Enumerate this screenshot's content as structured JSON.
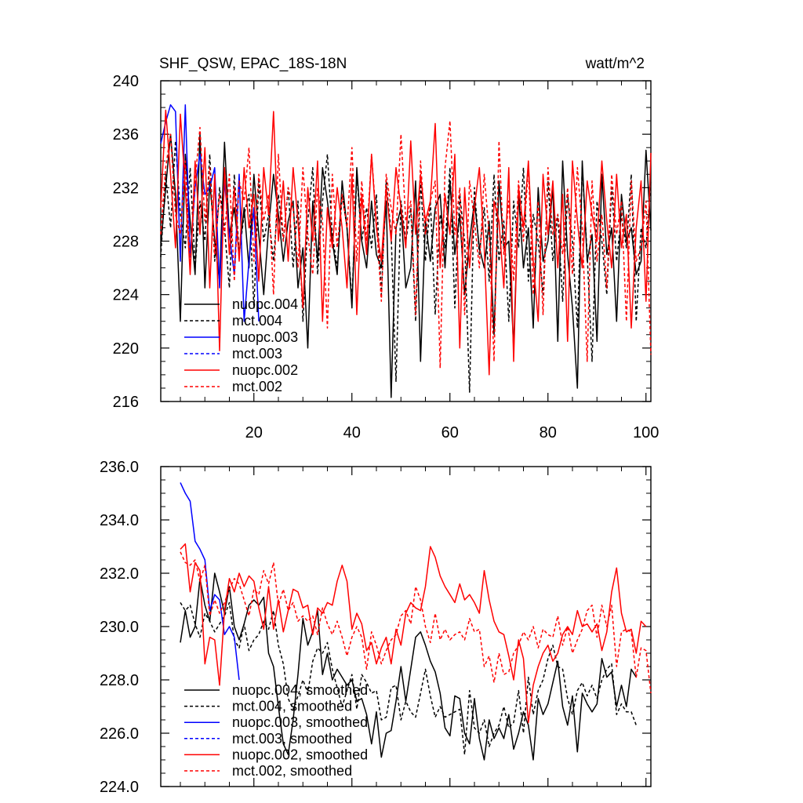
{
  "figure": {
    "title_left": "SHF_QSW, EPAC_18S-18N",
    "title_right": "watt/m^2"
  },
  "colors": {
    "black": "#000000",
    "blue": "#0000ff",
    "red": "#ff0000"
  },
  "chart_data": [
    {
      "type": "line",
      "title": "SHF_QSW, EPAC_18S-18N",
      "units": "watt/m^2",
      "xlim": [
        1,
        101
      ],
      "ylim": [
        216,
        240
      ],
      "xticks": [
        20,
        40,
        60,
        80,
        100
      ],
      "xtick_labels": [
        "20",
        "40",
        "60",
        "80",
        "100"
      ],
      "yticks": [
        216,
        220,
        224,
        228,
        232,
        236,
        240
      ],
      "ytick_labels": [
        "216",
        "220",
        "224",
        "228",
        "232",
        "236",
        "240"
      ],
      "legend": {
        "placement": "bottom-left"
      },
      "series": [
        {
          "name": "nuopc.004",
          "color": "#000000",
          "dash": "solid",
          "x_start": 1,
          "values": [
            227.6,
            232.0,
            236.0,
            231.5,
            222.0,
            234.5,
            229.5,
            225.5,
            236.0,
            224.5,
            232.5,
            228.0,
            225.0,
            235.4,
            228.5,
            230.5,
            227.0,
            230.5,
            226.0,
            233.0,
            228.5,
            224.0,
            229.0,
            233.0,
            230.0,
            226.5,
            229.5,
            231.0,
            224.5,
            227.5,
            220.0,
            231.0,
            226.5,
            233.5,
            231.0,
            228.0,
            225.5,
            232.5,
            229.0,
            223.0,
            233.5,
            228.0,
            226.0,
            231.0,
            227.0,
            226.0,
            231.0,
            216.3,
            229.0,
            230.5,
            224.5,
            226.0,
            232.5,
            219.0,
            229.5,
            226.5,
            230.5,
            231.5,
            226.0,
            232.5,
            227.0,
            230.0,
            224.0,
            228.0,
            231.0,
            227.5,
            226.0,
            229.5,
            221.0,
            232.5,
            227.5,
            228.0,
            220.0,
            231.5,
            226.0,
            229.0,
            221.5,
            232.0,
            226.5,
            228.0,
            232.0,
            220.5,
            234.0,
            227.0,
            223.0,
            217.0,
            234.0,
            226.5,
            228.5,
            220.5,
            233.0,
            227.0,
            229.0,
            222.0,
            231.5,
            228.0,
            229.0,
            225.5,
            226.5,
            234.8,
            228.8
          ]
        },
        {
          "name": "mct.004",
          "color": "#000000",
          "dash": "dashed",
          "x_start": 1,
          "values": [
            226.8,
            233.0,
            229.0,
            235.5,
            230.0,
            227.5,
            233.5,
            226.0,
            231.0,
            228.0,
            234.5,
            226.5,
            232.0,
            229.0,
            224.5,
            233.0,
            227.0,
            230.0,
            231.5,
            223.0,
            232.5,
            228.0,
            230.0,
            226.5,
            231.5,
            228.0,
            232.0,
            226.0,
            231.0,
            222.0,
            229.5,
            233.5,
            225.5,
            231.0,
            234.5,
            228.5,
            226.0,
            231.5,
            229.0,
            223.5,
            233.0,
            228.0,
            230.5,
            227.5,
            231.5,
            224.0,
            232.5,
            228.5,
            217.5,
            231.0,
            228.0,
            230.5,
            222.0,
            232.5,
            226.5,
            231.0,
            222.5,
            230.0,
            227.5,
            233.5,
            223.0,
            231.5,
            228.0,
            216.7,
            232.0,
            227.0,
            230.5,
            225.0,
            233.0,
            226.5,
            229.5,
            222.0,
            231.0,
            227.5,
            233.5,
            225.0,
            230.0,
            228.0,
            224.0,
            232.5,
            226.5,
            230.0,
            223.5,
            231.5,
            228.0,
            221.5,
            233.5,
            227.0,
            219.0,
            231.0,
            228.0,
            224.0,
            232.0,
            226.5,
            230.0,
            227.5,
            233.0,
            222.0,
            229.0,
            227.5,
            232.5
          ]
        },
        {
          "name": "nuopc.003",
          "color": "#0000ff",
          "dash": "solid",
          "x_start": 1,
          "values": [
            235.3,
            236.9,
            238.2,
            237.7,
            226.5,
            238.2,
            226.8,
            232.0,
            234.5,
            231.5,
            232.0,
            233.5,
            224.5,
            232.5,
            228.5,
            225.5,
            233.0,
            222.0,
            226.5,
            230.5,
            222.0
          ]
        },
        {
          "name": "mct.003",
          "color": "#0000ff",
          "dash": "dashed",
          "x_start": 1,
          "values": []
        },
        {
          "name": "nuopc.002",
          "color": "#ff0000",
          "dash": "solid",
          "x_start": 1,
          "values": [
            230.5,
            237.8,
            233.0,
            227.5,
            237.5,
            232.0,
            225.5,
            234.0,
            228.5,
            235.0,
            224.5,
            233.0,
            219.8,
            233.5,
            227.0,
            232.0,
            226.5,
            233.5,
            229.0,
            231.5,
            225.0,
            233.5,
            230.0,
            237.7,
            228.0,
            232.5,
            226.5,
            233.5,
            229.5,
            223.0,
            232.0,
            228.0,
            234.0,
            222.0,
            230.5,
            227.5,
            232.0,
            229.0,
            224.5,
            233.0,
            222.5,
            231.5,
            227.0,
            234.5,
            229.0,
            226.5,
            232.0,
            228.0,
            233.5,
            230.5,
            227.5,
            235.5,
            228.5,
            233.0,
            229.5,
            231.0,
            236.8,
            226.0,
            231.5,
            228.5,
            234.5,
            220.0,
            232.0,
            226.0,
            230.5,
            233.5,
            227.5,
            218.0,
            231.0,
            229.5,
            224.5,
            233.5,
            219.0,
            232.0,
            229.0,
            234.0,
            226.5,
            222.0,
            233.0,
            228.5,
            232.5,
            226.0,
            231.5,
            220.5,
            234.0,
            229.5,
            226.0,
            232.5,
            230.0,
            228.0,
            234.0,
            229.5,
            226.0,
            233.0,
            227.5,
            230.0,
            221.5,
            229.0,
            232.5,
            223.5,
            234.6
          ]
        },
        {
          "name": "mct.002",
          "color": "#ff0000",
          "dash": "dashed",
          "x_start": 1,
          "values": [
            228.5,
            233.5,
            236.0,
            230.0,
            228.5,
            234.0,
            226.0,
            232.5,
            236.5,
            229.5,
            233.5,
            227.0,
            231.5,
            228.5,
            233.0,
            225.0,
            232.5,
            231.0,
            235.0,
            226.5,
            233.0,
            229.5,
            231.5,
            224.0,
            234.5,
            228.0,
            232.0,
            230.5,
            226.0,
            233.5,
            228.5,
            225.5,
            232.0,
            229.5,
            221.5,
            233.0,
            227.5,
            231.5,
            229.0,
            235.0,
            226.5,
            232.5,
            228.0,
            234.5,
            229.5,
            223.5,
            233.0,
            230.5,
            228.5,
            236.0,
            229.5,
            231.0,
            222.5,
            234.0,
            228.5,
            231.0,
            232.5,
            218.5,
            233.5,
            237.0,
            228.5,
            232.0,
            222.5,
            232.5,
            229.5,
            226.0,
            233.0,
            228.5,
            219.0,
            235.5,
            227.0,
            231.0,
            225.0,
            232.5,
            228.0,
            233.5,
            224.0,
            231.0,
            222.5,
            233.5,
            228.5,
            230.0,
            227.0,
            232.0,
            225.5,
            233.5,
            229.0,
            219.0,
            232.5,
            226.5,
            230.0,
            224.5,
            233.0,
            228.5,
            231.0,
            222.0,
            232.5,
            226.5,
            227.5,
            231.0,
            219.5
          ]
        }
      ]
    },
    {
      "type": "line",
      "title": "",
      "xlim": [
        1,
        101
      ],
      "ylim": [
        224,
        236
      ],
      "xticks": [
        20,
        40,
        60,
        80,
        100
      ],
      "xtick_labels": [],
      "yticks": [
        224,
        226,
        228,
        230,
        232,
        234,
        236
      ],
      "ytick_labels": [
        "224.0",
        "226.0",
        "228.0",
        "230.0",
        "232.0",
        "234.0",
        "236.0"
      ],
      "legend": {
        "placement": "bottom-left"
      },
      "series": [
        {
          "name": "nuopc.004, smoothed",
          "color": "#000000",
          "dash": "solid",
          "x_start": 5,
          "values": [
            229.4,
            230.6,
            229.6,
            230.0,
            231.8,
            230.8,
            230.2,
            232.0,
            231.3,
            230.5,
            231.5,
            230.0,
            229.5,
            230.1,
            230.8,
            231.0,
            230.8,
            231.1,
            229.0,
            228.5,
            227.0,
            225.6,
            225.2,
            226.5,
            228.2,
            230.3,
            229.3,
            229.8,
            230.6,
            228.2,
            229.0,
            228.0,
            228.4,
            228.1,
            227.8,
            228.0,
            227.2,
            227.3,
            226.7,
            225.6,
            226.8,
            225.1,
            226.0,
            226.1,
            227.2,
            228.5,
            227.2,
            228.4,
            229.6,
            229.8,
            229.3,
            228.7,
            228.3,
            227.5,
            226.2,
            225.9,
            227.4,
            227.3,
            226.0,
            225.6,
            227.3,
            225.8,
            225.0,
            226.5,
            225.8,
            226.2,
            225.8,
            226.7,
            225.4,
            226.0,
            226.8,
            226.3,
            225.0,
            227.3,
            226.7,
            227.1,
            227.9,
            228.7,
            227.0,
            226.3,
            227.4,
            225.3,
            227.5,
            227.1,
            226.8,
            227.1,
            228.8,
            228.1,
            228.3,
            227.0,
            227.8,
            227.0,
            228.4,
            228.1
          ]
        },
        {
          "name": "mct.004, smoothed",
          "color": "#000000",
          "dash": "dashed",
          "x_start": 5,
          "values": [
            230.9,
            230.6,
            230.8,
            230.1,
            229.6,
            230.5,
            230.2,
            229.8,
            230.1,
            230.4,
            230.9,
            229.5,
            229.2,
            230.1,
            229.1,
            229.5,
            229.7,
            230.2,
            229.9,
            230.6,
            229.3,
            228.6,
            227.3,
            226.9,
            227.4,
            228.0,
            227.5,
            228.7,
            229.2,
            229.0,
            229.4,
            228.4,
            227.7,
            227.0,
            227.6,
            228.2,
            226.9,
            228.2,
            227.9,
            227.5,
            227.6,
            226.5,
            226.6,
            227.7,
            227.8,
            226.5,
            227.2,
            226.8,
            226.6,
            227.5,
            228.4,
            227.4,
            226.6,
            227.0,
            226.6,
            226.7,
            226.8,
            226.9,
            225.2,
            227.6,
            226.2,
            226.0,
            226.5,
            225.5,
            226.0,
            226.3,
            227.0,
            226.2,
            226.4,
            227.6,
            226.0,
            228.1,
            226.7,
            227.6,
            228.0,
            228.8,
            229.3,
            228.5,
            228.4,
            227.3,
            226.7,
            227.6,
            227.9,
            227.4,
            227.8,
            227.3,
            228.0,
            228.4,
            228.6,
            226.7,
            227.1,
            226.8,
            226.8,
            226.3
          ]
        },
        {
          "name": "nuopc.003, smoothed",
          "color": "#0000ff",
          "dash": "solid",
          "x_start": 5,
          "values": [
            235.4,
            235.0,
            234.7,
            233.2,
            232.9,
            232.5,
            230.6,
            231.2,
            231.0,
            229.7,
            230.0,
            229.6,
            228.0
          ]
        },
        {
          "name": "mct.003, smoothed",
          "color": "#0000ff",
          "dash": "dashed",
          "x_start": 5,
          "values": []
        },
        {
          "name": "nuopc.002, smoothed",
          "color": "#ff0000",
          "dash": "solid",
          "x_start": 5,
          "values": [
            232.9,
            233.1,
            231.3,
            232.4,
            232.1,
            228.6,
            229.6,
            229.5,
            227.8,
            230.6,
            231.8,
            231.3,
            232.0,
            231.5,
            231.9,
            231.7,
            230.7,
            229.9,
            231.5,
            229.9,
            231.0,
            229.8,
            230.6,
            231.4,
            231.3,
            230.7,
            230.8,
            229.7,
            230.7,
            230.5,
            230.9,
            230.8,
            231.7,
            232.3,
            231.7,
            229.9,
            230.5,
            230.1,
            229.1,
            229.4,
            228.6,
            229.2,
            229.6,
            228.6,
            229.9,
            229.3,
            230.5,
            230.9,
            230.7,
            230.6,
            231.5,
            233.0,
            232.6,
            231.9,
            231.5,
            231.2,
            230.9,
            231.6,
            231.0,
            231.2,
            230.9,
            230.5,
            232.1,
            231.0,
            230.2,
            229.8,
            229.7,
            228.9,
            228.0,
            229.5,
            228.8,
            226.4,
            227.8,
            228.5,
            229.0,
            229.3,
            228.7,
            229.0,
            229.7,
            230.0,
            229.7,
            230.6,
            230.0,
            230.1,
            229.8,
            230.1,
            229.1,
            229.8,
            231.3,
            232.2,
            230.5,
            229.8,
            229.9,
            229.0,
            230.2,
            230.0
          ]
        },
        {
          "name": "mct.002, smoothed",
          "color": "#ff0000",
          "dash": "dashed",
          "x_start": 5,
          "values": [
            232.8,
            232.4,
            232.3,
            232.5,
            231.7,
            232.3,
            230.4,
            231.0,
            230.5,
            230.9,
            231.4,
            231.8,
            231.6,
            231.0,
            230.4,
            231.4,
            231.2,
            232.1,
            231.6,
            232.4,
            230.8,
            231.4,
            230.6,
            230.9,
            230.2,
            230.4,
            230.2,
            230.4,
            229.7,
            230.7,
            230.1,
            229.7,
            230.2,
            229.6,
            228.9,
            229.6,
            230.0,
            229.6,
            228.4,
            229.8,
            229.3,
            228.6,
            229.1,
            229.5,
            229.7,
            230.4,
            230.6,
            230.1,
            231.5,
            231.0,
            230.0,
            229.4,
            230.5,
            229.5,
            229.9,
            229.5,
            229.7,
            229.8,
            229.5,
            230.3,
            229.8,
            229.9,
            228.5,
            228.9,
            227.9,
            229.0,
            228.2,
            228.3,
            229.0,
            229.3,
            229.8,
            229.5,
            230.0,
            229.2,
            229.9,
            229.7,
            229.6,
            230.4,
            229.3,
            230.0,
            229.0,
            229.5,
            229.9,
            230.6,
            230.8,
            229.6,
            230.8,
            230.0,
            230.8,
            228.5,
            229.8,
            229.9,
            229.8,
            228.1,
            229.2,
            229.1,
            227.5
          ]
        }
      ]
    }
  ]
}
